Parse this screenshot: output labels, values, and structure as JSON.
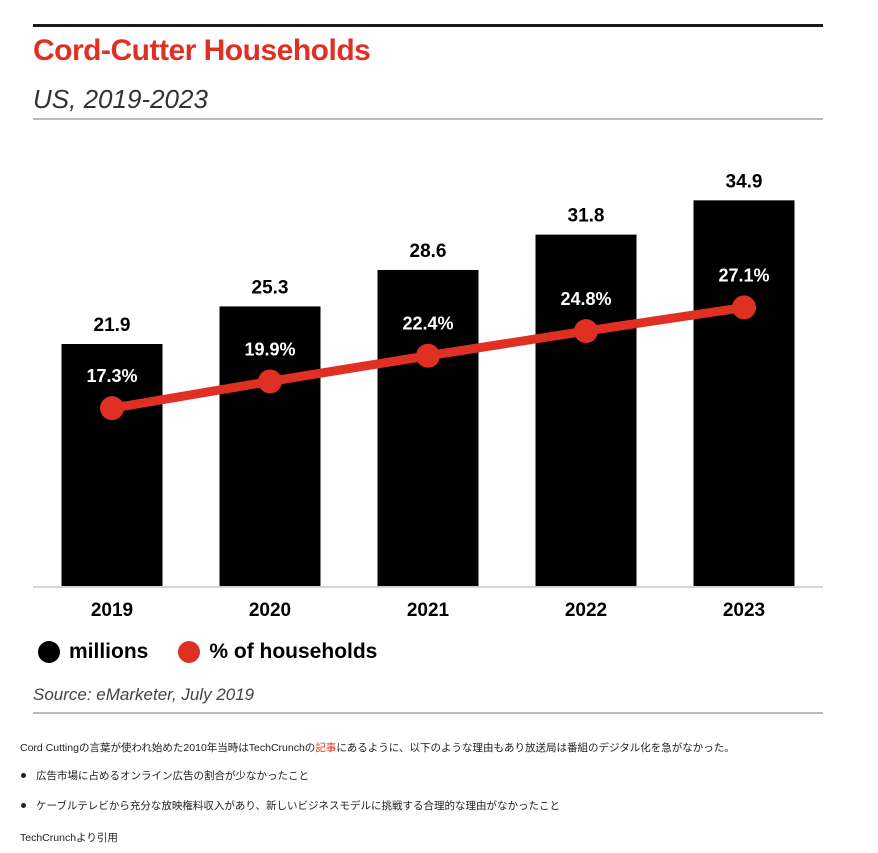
{
  "chart_data": {
    "type": "bar",
    "title": "Cord-Cutter Households",
    "subtitle": "US, 2019-2023",
    "categories": [
      "2019",
      "2020",
      "2021",
      "2022",
      "2023"
    ],
    "series": [
      {
        "name": "millions",
        "type": "bar",
        "values": [
          21.9,
          25.3,
          28.6,
          31.8,
          34.9
        ],
        "labels": [
          "21.9",
          "25.3",
          "28.6",
          "31.8",
          "34.9"
        ],
        "color": "#000000"
      },
      {
        "name": "% of households",
        "type": "line",
        "values": [
          17.3,
          19.9,
          22.4,
          24.8,
          27.1
        ],
        "labels": [
          "17.3%",
          "19.9%",
          "22.4%",
          "24.8%",
          "27.1%"
        ],
        "color": "#e03024"
      }
    ],
    "ylim": [
      0,
      40
    ],
    "line_ylim": [
      0,
      43
    ],
    "legend_position": "bottom-left",
    "grid": false,
    "source": "Source: eMarketer, July 2019"
  },
  "colors": {
    "accent": "#e03024",
    "bar": "#000000"
  },
  "article": {
    "paragraph_before": "Cord Cuttingの言葉が使われ始めた2010年当時はTechCrunchの",
    "paragraph_link": "記事",
    "paragraph_after": "にあるように、以下のような理由もあり放送局は番組のデジタル化を急がなかった。",
    "bullets": [
      "広告市場に占めるオンライン広告の割合が少なかったこと",
      "ケーブルテレビから充分な放映権料収入があり、新しいビジネスモデルに挑戦する合理的な理由がなかったこと"
    ],
    "credit": "TechCrunchより引用"
  }
}
